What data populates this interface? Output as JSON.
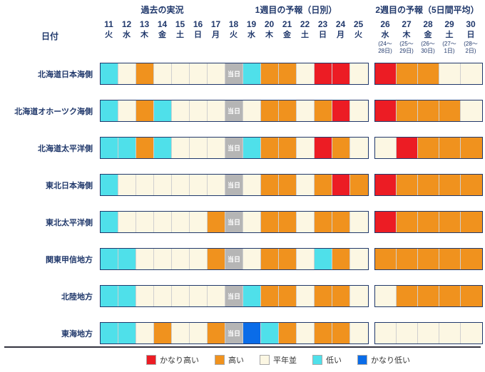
{
  "chart_data": {
    "type": "heatmap",
    "sections": [
      "過去の実況",
      "1週目の予報（日別）",
      "2週目の予報（5日間平均）"
    ],
    "date_label": "日付",
    "today_label": "当日",
    "columns_week1": [
      {
        "day": "11",
        "weekday": "火"
      },
      {
        "day": "12",
        "weekday": "水"
      },
      {
        "day": "13",
        "weekday": "木"
      },
      {
        "day": "14",
        "weekday": "金"
      },
      {
        "day": "15",
        "weekday": "土"
      },
      {
        "day": "16",
        "weekday": "日"
      },
      {
        "day": "17",
        "weekday": "月"
      },
      {
        "day": "18",
        "weekday": "火"
      },
      {
        "day": "19",
        "weekday": "水"
      },
      {
        "day": "20",
        "weekday": "木"
      },
      {
        "day": "21",
        "weekday": "金"
      },
      {
        "day": "22",
        "weekday": "土"
      },
      {
        "day": "23",
        "weekday": "日"
      },
      {
        "day": "24",
        "weekday": "月"
      },
      {
        "day": "25",
        "weekday": "火"
      }
    ],
    "columns_week2": [
      {
        "day": "26",
        "weekday": "水",
        "range": [
          "(24～",
          "28日)"
        ]
      },
      {
        "day": "27",
        "weekday": "木",
        "range": [
          "(25～",
          "29日)"
        ]
      },
      {
        "day": "28",
        "weekday": "金",
        "range": [
          "(26～",
          "30日)"
        ]
      },
      {
        "day": "29",
        "weekday": "土",
        "range": [
          "(27～",
          "1日)"
        ]
      },
      {
        "day": "30",
        "weekday": "日",
        "range": [
          "(28～",
          "2日)"
        ]
      }
    ],
    "rows": [
      {
        "name": "北海道日本海側",
        "week1": [
          "L",
          "N",
          "H",
          "N",
          "N",
          "N",
          "N",
          "TODAY",
          "L",
          "H",
          "H",
          "N",
          "VH",
          "VH",
          "N"
        ],
        "week2": [
          "VH",
          "H",
          "H",
          "N",
          "N"
        ]
      },
      {
        "name": "北海道オホーツク海側",
        "week1": [
          "L",
          "N",
          "H",
          "L",
          "N",
          "N",
          "N",
          "TODAY",
          "N",
          "H",
          "H",
          "N",
          "H",
          "VH",
          "N"
        ],
        "week2": [
          "VH",
          "H",
          "H",
          "H",
          "N"
        ]
      },
      {
        "name": "北海道太平洋側",
        "week1": [
          "L",
          "L",
          "H",
          "L",
          "N",
          "N",
          "N",
          "TODAY",
          "L",
          "H",
          "H",
          "N",
          "VH",
          "H",
          "N"
        ],
        "week2": [
          "N",
          "VH",
          "H",
          "H",
          "H"
        ]
      },
      {
        "name": "東北日本海側",
        "week1": [
          "L",
          "N",
          "N",
          "N",
          "N",
          "N",
          "N",
          "TODAY",
          "N",
          "H",
          "H",
          "N",
          "H",
          "VH",
          "H"
        ],
        "week2": [
          "VH",
          "H",
          "H",
          "H",
          "H"
        ]
      },
      {
        "name": "東北太平洋側",
        "week1": [
          "L",
          "N",
          "N",
          "N",
          "N",
          "N",
          "H",
          "TODAY",
          "N",
          "H",
          "H",
          "N",
          "H",
          "H",
          "N"
        ],
        "week2": [
          "VH",
          "H",
          "H",
          "H",
          "H"
        ]
      },
      {
        "name": "関東甲信地方",
        "week1": [
          "L",
          "L",
          "N",
          "N",
          "N",
          "N",
          "H",
          "TODAY",
          "N",
          "H",
          "H",
          "N",
          "L",
          "H",
          "N"
        ],
        "week2": [
          "H",
          "H",
          "H",
          "H",
          "H"
        ]
      },
      {
        "name": "北陸地方",
        "week1": [
          "L",
          "L",
          "N",
          "N",
          "N",
          "N",
          "N",
          "TODAY",
          "L",
          "H",
          "H",
          "N",
          "H",
          "H",
          "N"
        ],
        "week2": [
          "N",
          "H",
          "H",
          "H",
          "H"
        ]
      },
      {
        "name": "東海地方",
        "week1": [
          "L",
          "L",
          "N",
          "H",
          "N",
          "N",
          "H",
          "TODAY",
          "VL",
          "L",
          "H",
          "N",
          "H",
          "H",
          "N"
        ],
        "week2": [
          "N",
          "N",
          "N",
          "N",
          "N"
        ]
      }
    ],
    "categories_legend": {
      "VH": "かなり高い",
      "H": "高い",
      "N": "平年並",
      "L": "低い",
      "VL": "かなり低い"
    },
    "legend_order": [
      "VH",
      "H",
      "N",
      "L",
      "VL"
    ],
    "colors": {
      "VH": "#ec1c24",
      "H": "#f0921e",
      "N": "#fcf7e3",
      "L": "#4fe0ea",
      "VL": "#0a6ce8",
      "TODAY": "#b5b5b5",
      "text": "#20386b"
    }
  }
}
